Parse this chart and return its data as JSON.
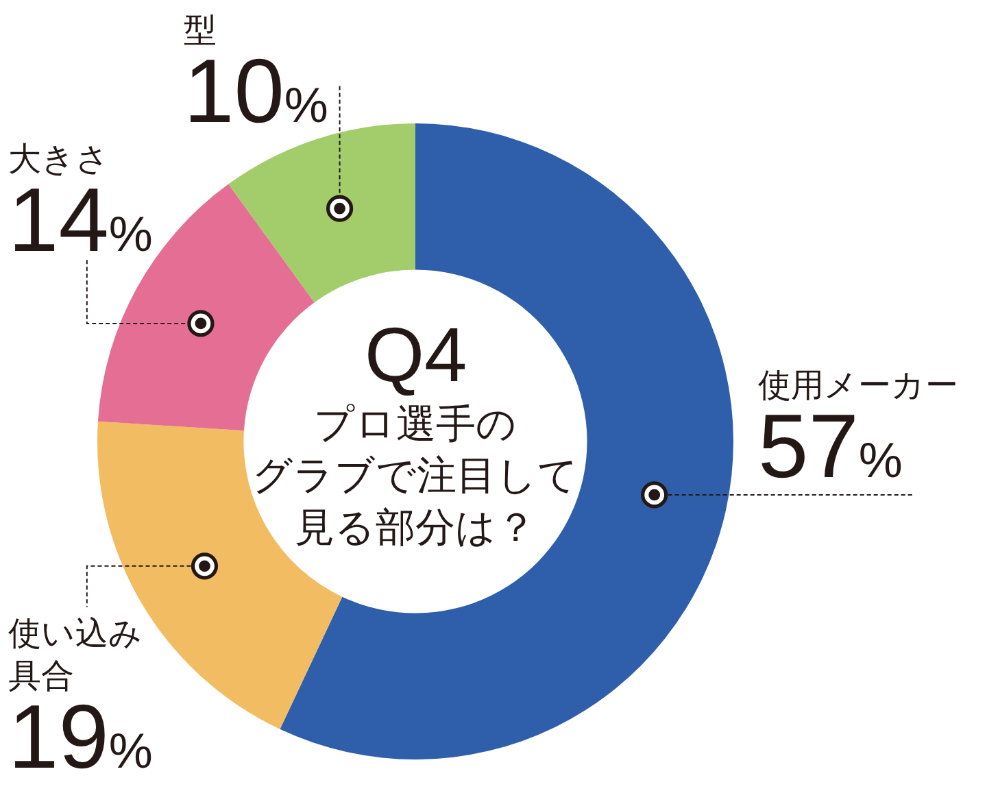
{
  "chart_data": {
    "type": "donut",
    "title": "Q4",
    "subtitle": "プロ選手のグラブで注目して見る部分は？",
    "categories": [
      "使用メーカー",
      "使い込み具合",
      "大きさ",
      "型"
    ],
    "values": [
      57,
      19,
      14,
      10
    ],
    "colors": [
      "#2f5fab",
      "#f2bd62",
      "#e56e95",
      "#a3cd6a"
    ],
    "value_labels": [
      "57%",
      "19%",
      "14%",
      "10%"
    ]
  }
}
